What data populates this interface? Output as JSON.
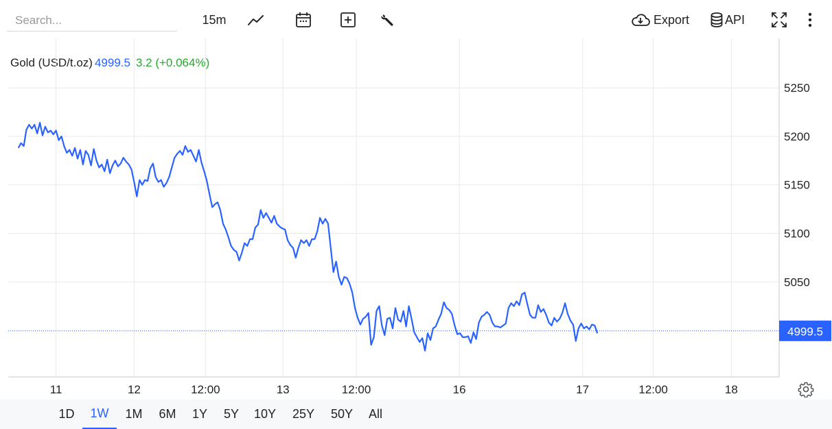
{
  "toolbar": {
    "search_placeholder": "Search...",
    "interval": "15m",
    "export_label": "Export",
    "api_label": "API",
    "icons": [
      "line-chart-icon",
      "calendar-icon",
      "add-indicator-icon",
      "wrench-icon",
      "cloud-download-icon",
      "database-icon",
      "fullscreen-icon",
      "more-vertical-icon"
    ]
  },
  "legend": {
    "name": "Gold (USD/t.oz)",
    "price": "4999.5",
    "change": "3.2 (+0.064%)"
  },
  "range_buttons": [
    "1D",
    "1W",
    "1M",
    "6M",
    "1Y",
    "5Y",
    "10Y",
    "25Y",
    "50Y",
    "All"
  ],
  "active_range": "1W",
  "colors": {
    "line": "#2962ff",
    "positive": "#22ab2a",
    "grid": "#e9e9e9",
    "last_price_bg": "#2962ff"
  },
  "chart_data": {
    "type": "line",
    "series": [
      {
        "name": "Gold (USD/t.oz)",
        "points": [
          [
            0,
            5188
          ],
          [
            4,
            5193
          ],
          [
            8,
            5190
          ],
          [
            12,
            5207
          ],
          [
            16,
            5212
          ],
          [
            20,
            5208
          ],
          [
            24,
            5212
          ],
          [
            28,
            5203
          ],
          [
            32,
            5214
          ],
          [
            36,
            5201
          ],
          [
            40,
            5210
          ],
          [
            44,
            5204
          ],
          [
            48,
            5206
          ],
          [
            52,
            5202
          ],
          [
            56,
            5206
          ],
          [
            60,
            5196
          ],
          [
            64,
            5200
          ],
          [
            68,
            5190
          ],
          [
            72,
            5183
          ],
          [
            76,
            5186
          ],
          [
            80,
            5180
          ],
          [
            84,
            5188
          ],
          [
            88,
            5177
          ],
          [
            92,
            5186
          ],
          [
            96,
            5171
          ],
          [
            100,
            5185
          ],
          [
            104,
            5181
          ],
          [
            108,
            5170
          ],
          [
            112,
            5187
          ],
          [
            116,
            5175
          ],
          [
            120,
            5168
          ],
          [
            124,
            5171
          ],
          [
            128,
            5164
          ],
          [
            132,
            5176
          ],
          [
            136,
            5162
          ],
          [
            140,
            5170
          ],
          [
            144,
            5175
          ],
          [
            148,
            5169
          ],
          [
            152,
            5172
          ],
          [
            156,
            5178
          ],
          [
            160,
            5174
          ],
          [
            164,
            5171
          ],
          [
            168,
            5166
          ],
          [
            172,
            5153
          ],
          [
            176,
            5138
          ],
          [
            180,
            5155
          ],
          [
            184,
            5150
          ],
          [
            188,
            5155
          ],
          [
            192,
            5154
          ],
          [
            196,
            5167
          ],
          [
            200,
            5172
          ],
          [
            204,
            5158
          ],
          [
            208,
            5153
          ],
          [
            212,
            5155
          ],
          [
            216,
            5148
          ],
          [
            220,
            5152
          ],
          [
            224,
            5158
          ],
          [
            228,
            5168
          ],
          [
            232,
            5178
          ],
          [
            236,
            5182
          ],
          [
            240,
            5185
          ],
          [
            244,
            5181
          ],
          [
            248,
            5190
          ],
          [
            252,
            5184
          ],
          [
            256,
            5186
          ],
          [
            260,
            5180
          ],
          [
            264,
            5174
          ],
          [
            268,
            5186
          ],
          [
            272,
            5173
          ],
          [
            276,
            5164
          ],
          [
            280,
            5154
          ],
          [
            284,
            5140
          ],
          [
            288,
            5127
          ],
          [
            292,
            5130
          ],
          [
            296,
            5132
          ],
          [
            300,
            5124
          ],
          [
            304,
            5110
          ],
          [
            308,
            5104
          ],
          [
            312,
            5096
          ],
          [
            316,
            5087
          ],
          [
            320,
            5083
          ],
          [
            324,
            5081
          ],
          [
            328,
            5072
          ],
          [
            332,
            5080
          ],
          [
            336,
            5090
          ],
          [
            340,
            5087
          ],
          [
            344,
            5094
          ],
          [
            348,
            5094
          ],
          [
            352,
            5106
          ],
          [
            356,
            5109
          ],
          [
            360,
            5124
          ],
          [
            364,
            5116
          ],
          [
            368,
            5121
          ],
          [
            372,
            5116
          ],
          [
            376,
            5111
          ],
          [
            380,
            5118
          ],
          [
            384,
            5110
          ],
          [
            388,
            5107
          ],
          [
            392,
            5105
          ],
          [
            396,
            5104
          ],
          [
            400,
            5093
          ],
          [
            404,
            5088
          ],
          [
            408,
            5085
          ],
          [
            412,
            5075
          ],
          [
            416,
            5085
          ],
          [
            420,
            5093
          ],
          [
            424,
            5090
          ],
          [
            428,
            5093
          ],
          [
            432,
            5087
          ],
          [
            436,
            5094
          ],
          [
            440,
            5094
          ],
          [
            444,
            5102
          ],
          [
            448,
            5116
          ],
          [
            452,
            5110
          ],
          [
            456,
            5115
          ],
          [
            460,
            5110
          ],
          [
            464,
            5085
          ],
          [
            468,
            5060
          ],
          [
            472,
            5071
          ],
          [
            476,
            5055
          ],
          [
            480,
            5047
          ],
          [
            484,
            5055
          ],
          [
            488,
            5054
          ],
          [
            492,
            5048
          ],
          [
            496,
            5039
          ],
          [
            500,
            5023
          ],
          [
            504,
            5013
          ],
          [
            508,
            5006
          ],
          [
            512,
            5012
          ],
          [
            516,
            5014
          ],
          [
            520,
            5018
          ],
          [
            524,
            4985
          ],
          [
            528,
            4993
          ],
          [
            532,
            5020
          ],
          [
            536,
            5025
          ],
          [
            540,
            5005
          ],
          [
            544,
            4995
          ],
          [
            548,
            5012
          ],
          [
            552,
            5013
          ],
          [
            556,
            5002
          ],
          [
            560,
            5023
          ],
          [
            564,
            5011
          ],
          [
            568,
            5009
          ],
          [
            572,
            5020
          ],
          [
            576,
            5004
          ],
          [
            580,
            5025
          ],
          [
            584,
            5012
          ],
          [
            588,
            4998
          ],
          [
            592,
            4993
          ],
          [
            596,
            4988
          ],
          [
            600,
            4992
          ],
          [
            604,
            4979
          ],
          [
            608,
            4997
          ],
          [
            612,
            4990
          ],
          [
            616,
            5002
          ],
          [
            620,
            5004
          ],
          [
            624,
            5011
          ],
          [
            628,
            5017
          ],
          [
            632,
            5029
          ],
          [
            636,
            5023
          ],
          [
            640,
            5021
          ],
          [
            644,
            5017
          ],
          [
            648,
            5005
          ],
          [
            652,
            4996
          ],
          [
            656,
            4997
          ],
          [
            660,
            4993
          ],
          [
            664,
            4993
          ],
          [
            668,
            4994
          ],
          [
            672,
            4987
          ],
          [
            676,
            4998
          ],
          [
            680,
            4991
          ],
          [
            684,
            5008
          ],
          [
            688,
            5014
          ],
          [
            692,
            5016
          ],
          [
            696,
            5019
          ],
          [
            700,
            5016
          ],
          [
            704,
            5008
          ],
          [
            708,
            5004
          ],
          [
            712,
            5004
          ],
          [
            716,
            5003
          ],
          [
            720,
            5005
          ],
          [
            724,
            5007
          ],
          [
            728,
            5023
          ],
          [
            732,
            5028
          ],
          [
            736,
            5025
          ],
          [
            740,
            5030
          ],
          [
            744,
            5026
          ],
          [
            748,
            5037
          ],
          [
            752,
            5039
          ],
          [
            756,
            5027
          ],
          [
            760,
            5016
          ],
          [
            764,
            5013
          ],
          [
            768,
            5013
          ],
          [
            772,
            5026
          ],
          [
            776,
            5019
          ],
          [
            780,
            5022
          ],
          [
            784,
            5016
          ],
          [
            788,
            5008
          ],
          [
            792,
            5005
          ],
          [
            796,
            5013
          ],
          [
            800,
            5009
          ],
          [
            804,
            5012
          ],
          [
            808,
            5018
          ],
          [
            812,
            5028
          ],
          [
            816,
            5017
          ],
          [
            820,
            5010
          ],
          [
            824,
            5006
          ],
          [
            828,
            4989
          ],
          [
            832,
            5002
          ],
          [
            836,
            5007
          ],
          [
            840,
            5002
          ],
          [
            844,
            5004
          ],
          [
            848,
            5001
          ],
          [
            852,
            5006
          ],
          [
            856,
            5005
          ],
          [
            860,
            4997
          ]
        ]
      }
    ],
    "x_ticks": [
      {
        "x": 56,
        "label": "11"
      },
      {
        "x": 172,
        "label": "12"
      },
      {
        "x": 278,
        "label": "12:00"
      },
      {
        "x": 393,
        "label": "13"
      },
      {
        "x": 502,
        "label": "12:00"
      },
      {
        "x": 655,
        "label": "16"
      },
      {
        "x": 838,
        "label": "17"
      },
      {
        "x": 943,
        "label": "12:00"
      },
      {
        "x": 1059,
        "label": "18"
      }
    ],
    "x_range": [
      -15,
      1130
    ],
    "y_ticks": [
      5050,
      5100,
      5150,
      5200,
      5250
    ],
    "y_range": [
      4952,
      5301
    ],
    "last_value": 4999.5,
    "last_value_label": "4999.5",
    "grid": true
  }
}
